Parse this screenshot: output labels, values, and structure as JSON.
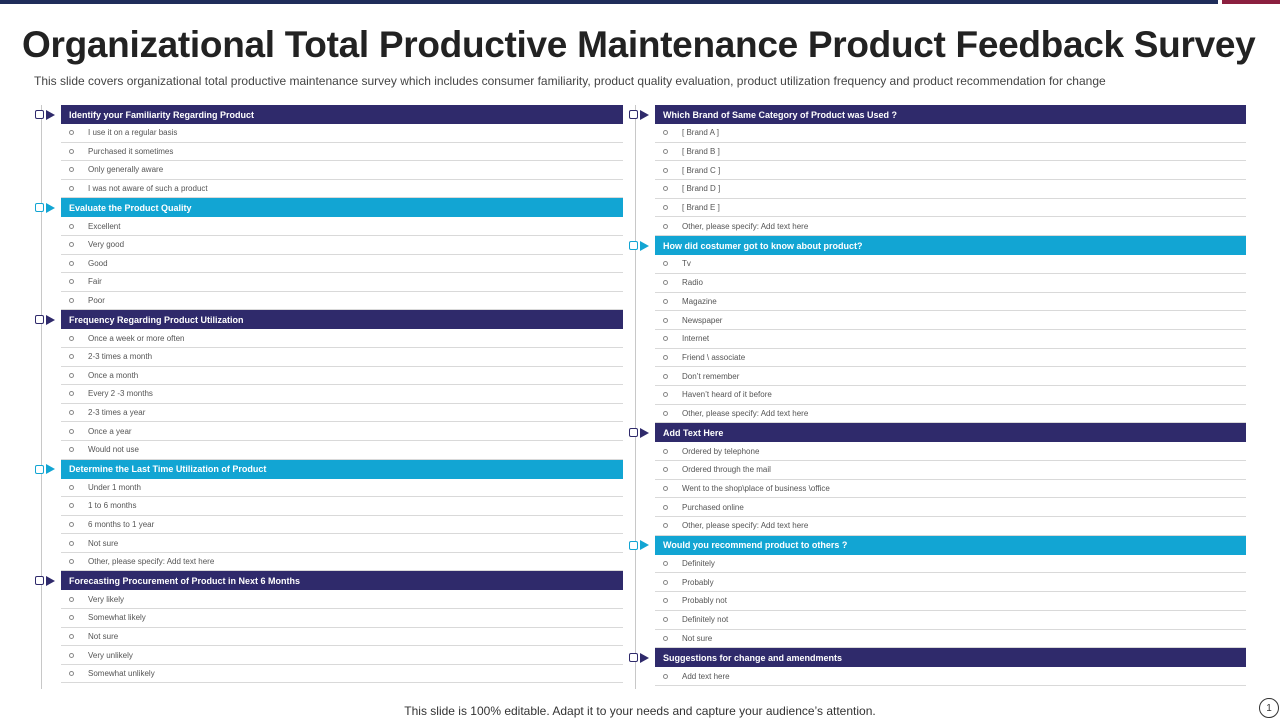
{
  "title": "Organizational Total Productive Maintenance Product Feedback Survey",
  "subtitle": "This slide covers organizational total productive maintenance survey which includes consumer familiarity, product quality evaluation, product utilization frequency and product recommendation for change",
  "footer": "This slide is 100% editable. Adapt it to your needs and capture your audience’s attention.",
  "page_number": "1",
  "colors": {
    "dark": "#2f2a6b",
    "cyan": "#12a5d3",
    "top_bar": "#1f2d5a",
    "accent": "#8b1f3f"
  },
  "left_sections": [
    {
      "title": "Identify your Familiarity Regarding Product",
      "style": "dark",
      "options": [
        "I use it on a regular basis",
        "Purchased it sometimes",
        "Only generally aware",
        "I was not aware of such a product"
      ]
    },
    {
      "title": "Evaluate the Product Quality",
      "style": "cyan",
      "options": [
        "Excellent",
        "Very good",
        "Good",
        "Fair",
        "Poor"
      ]
    },
    {
      "title": "Frequency Regarding Product Utilization",
      "style": "dark",
      "options": [
        "Once a week or more often",
        "2-3 times a month",
        "Once a month",
        "Every 2 -3 months",
        "2-3 times a year",
        "Once a year",
        "Would not use"
      ]
    },
    {
      "title": "Determine the Last Time Utilization of Product",
      "style": "cyan",
      "options": [
        "Under 1 month",
        "1 to 6 months",
        "6 months to 1 year",
        "Not sure",
        "Other, please specify: Add text here"
      ]
    },
    {
      "title": "Forecasting Procurement of Product in Next 6 Months",
      "style": "dark",
      "options": [
        "Very likely",
        "Somewhat likely",
        "Not sure",
        "Very unlikely",
        "Somewhat unlikely"
      ]
    }
  ],
  "right_sections": [
    {
      "title": "Which Brand of Same Category of Product was Used ?",
      "style": "dark",
      "options": [
        "[ Brand A ]",
        "[ Brand B ]",
        "[ Brand C ]",
        "[ Brand D ]",
        "[ Brand E ]",
        "Other, please specify: Add text here"
      ]
    },
    {
      "title": "How did costumer got to know about product?",
      "style": "cyan",
      "options": [
        "Tv",
        "Radio",
        "Magazine",
        "Newspaper",
        "Internet",
        "Friend \\ associate",
        "Don’t remember",
        "Haven’t heard of it before",
        "Other, please specify: Add text here"
      ]
    },
    {
      "title": "Add Text Here",
      "style": "dark",
      "options": [
        "Ordered by telephone",
        "Ordered through the mail",
        "Went to the shop\\place of business \\office",
        "Purchased online",
        "Other, please specify: Add text here"
      ]
    },
    {
      "title": "Would you recommend product to others ?",
      "style": "cyan",
      "options": [
        "Definitely",
        "Probably",
        "Probably not",
        "Definitely not",
        "Not sure"
      ]
    },
    {
      "title": "Suggestions for change and amendments",
      "style": "dark",
      "options": [
        "Add text here"
      ]
    }
  ]
}
